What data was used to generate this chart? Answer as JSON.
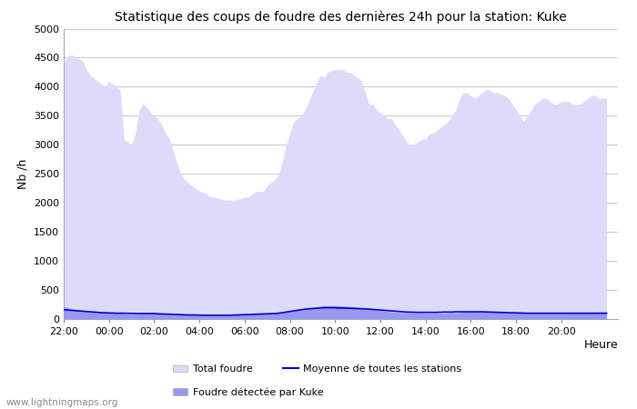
{
  "title": "Statistique des coups de foudre des dernières 24h pour la station: Kuke",
  "xlabel": "Heure",
  "ylabel": "Nb /h",
  "xlim": [
    0,
    24.5
  ],
  "ylim": [
    0,
    5000
  ],
  "yticks": [
    0,
    500,
    1000,
    1500,
    2000,
    2500,
    3000,
    3500,
    4000,
    4500,
    5000
  ],
  "xtick_labels": [
    "22:00",
    "00:00",
    "02:00",
    "04:00",
    "06:00",
    "08:00",
    "10:00",
    "12:00",
    "14:00",
    "16:00",
    "18:00",
    "20:00"
  ],
  "xtick_positions": [
    0,
    2,
    4,
    6,
    8,
    10,
    12,
    14,
    16,
    18,
    20,
    22
  ],
  "background_color": "#ffffff",
  "plot_bg_color": "#ffffff",
  "grid_color": "#cccccc",
  "fill_total_color": "#dcdcfa",
  "fill_kuke_color": "#9898f0",
  "line_mean_color": "#0000cc",
  "watermark": "www.lightningmaps.org",
  "legend_items": [
    "Total foudre",
    "Moyenne de toutes les stations",
    "Foudre détectée par Kuke"
  ],
  "x": [
    0.0,
    0.167,
    0.333,
    0.5,
    0.667,
    0.833,
    1.0,
    1.167,
    1.333,
    1.5,
    1.667,
    1.833,
    2.0,
    2.167,
    2.333,
    2.5,
    2.667,
    2.833,
    3.0,
    3.167,
    3.333,
    3.5,
    3.667,
    3.833,
    4.0,
    4.167,
    4.333,
    4.5,
    4.667,
    4.833,
    5.0,
    5.167,
    5.333,
    5.5,
    5.667,
    5.833,
    6.0,
    6.167,
    6.333,
    6.5,
    6.667,
    6.833,
    7.0,
    7.167,
    7.333,
    7.5,
    7.667,
    7.833,
    8.0,
    8.167,
    8.333,
    8.5,
    8.667,
    8.833,
    9.0,
    9.167,
    9.333,
    9.5,
    9.667,
    9.833,
    10.0,
    10.167,
    10.333,
    10.5,
    10.667,
    10.833,
    11.0,
    11.167,
    11.333,
    11.5,
    11.667,
    11.833,
    12.0,
    12.167,
    12.333,
    12.5,
    12.667,
    12.833,
    13.0,
    13.167,
    13.333,
    13.5,
    13.667,
    13.833,
    14.0,
    14.167,
    14.333,
    14.5,
    14.667,
    14.833,
    15.0,
    15.167,
    15.333,
    15.5,
    15.667,
    15.833,
    16.0,
    16.167,
    16.333,
    16.5,
    16.667,
    16.833,
    17.0,
    17.167,
    17.333,
    17.5,
    17.667,
    17.833,
    18.0,
    18.167,
    18.333,
    18.5,
    18.667,
    18.833,
    19.0,
    19.167,
    19.333,
    19.5,
    19.667,
    19.833,
    20.0,
    20.167,
    20.333,
    20.5,
    20.667,
    20.833,
    21.0,
    21.167,
    21.333,
    21.5,
    21.667,
    21.833,
    22.0,
    22.167,
    22.333,
    22.5,
    22.667,
    22.833,
    23.0,
    23.167,
    23.333,
    23.5,
    23.667,
    23.833,
    24.0
  ],
  "total_foudre": [
    4400,
    4530,
    4550,
    4520,
    4480,
    4450,
    4300,
    4200,
    4150,
    4100,
    4050,
    4000,
    4100,
    4050,
    4000,
    3950,
    3100,
    3050,
    3000,
    3200,
    3600,
    3700,
    3650,
    3550,
    3500,
    3450,
    3350,
    3200,
    3100,
    2900,
    2700,
    2500,
    2400,
    2350,
    2300,
    2250,
    2200,
    2180,
    2150,
    2100,
    2100,
    2080,
    2060,
    2050,
    2050,
    2050,
    2060,
    2070,
    2100,
    2100,
    2150,
    2200,
    2200,
    2200,
    2300,
    2350,
    2400,
    2500,
    2700,
    3000,
    3200,
    3400,
    3450,
    3500,
    3600,
    3750,
    3900,
    4050,
    4200,
    4160,
    4250,
    4280,
    4300,
    4300,
    4300,
    4250,
    4250,
    4200,
    4150,
    4100,
    3900,
    3700,
    3700,
    3600,
    3550,
    3500,
    3450,
    3450,
    3350,
    3250,
    3150,
    3050,
    3000,
    3020,
    3050,
    3100,
    3100,
    3200,
    3200,
    3250,
    3300,
    3350,
    3400,
    3500,
    3600,
    3800,
    3900,
    3900,
    3850,
    3800,
    3850,
    3900,
    3950,
    3950,
    3900,
    3900,
    3870,
    3850,
    3800,
    3700,
    3600,
    3500,
    3400,
    3500,
    3600,
    3700,
    3750,
    3800,
    3800,
    3750,
    3700,
    3700,
    3750,
    3750,
    3750,
    3700,
    3700,
    3700,
    3750,
    3800,
    3850,
    3850,
    3800,
    3800,
    3800
  ],
  "kuke_foudre": [
    220,
    200,
    180,
    170,
    160,
    150,
    140,
    130,
    130,
    120,
    120,
    110,
    110,
    110,
    100,
    100,
    90,
    85,
    80,
    85,
    90,
    100,
    100,
    100,
    100,
    100,
    95,
    90,
    85,
    80,
    75,
    70,
    70,
    70,
    70,
    65,
    65,
    65,
    65,
    65,
    65,
    65,
    65,
    65,
    65,
    70,
    70,
    70,
    75,
    80,
    80,
    85,
    85,
    90,
    90,
    95,
    100,
    100,
    110,
    120,
    130,
    140,
    160,
    170,
    180,
    190,
    200,
    210,
    220,
    230,
    230,
    230,
    230,
    230,
    225,
    220,
    215,
    210,
    200,
    195,
    185,
    175,
    165,
    155,
    145,
    140,
    130,
    125,
    120,
    115,
    110,
    110,
    105,
    105,
    105,
    105,
    100,
    100,
    100,
    100,
    100,
    100,
    100,
    110,
    110,
    115,
    115,
    120,
    120,
    120,
    125,
    125,
    125,
    125,
    120,
    120,
    115,
    115,
    110,
    110,
    105,
    105,
    100,
    100,
    100,
    100,
    100,
    100,
    100,
    100,
    100,
    100,
    100,
    100,
    100,
    105,
    105,
    110,
    110,
    115,
    115,
    120,
    120,
    120,
    125
  ],
  "mean_line": [
    160,
    155,
    150,
    145,
    140,
    135,
    130,
    125,
    120,
    115,
    110,
    108,
    105,
    103,
    100,
    100,
    100,
    98,
    95,
    95,
    95,
    95,
    95,
    95,
    95,
    90,
    88,
    85,
    82,
    80,
    78,
    75,
    73,
    70,
    70,
    68,
    65,
    65,
    65,
    65,
    65,
    65,
    65,
    65,
    65,
    68,
    70,
    72,
    75,
    78,
    80,
    82,
    85,
    88,
    90,
    92,
    95,
    100,
    110,
    120,
    130,
    140,
    150,
    160,
    170,
    175,
    180,
    185,
    190,
    195,
    195,
    195,
    195,
    190,
    190,
    188,
    185,
    182,
    180,
    178,
    175,
    170,
    165,
    160,
    155,
    150,
    145,
    140,
    135,
    130,
    125,
    120,
    118,
    115,
    115,
    115,
    115,
    115,
    115,
    115,
    118,
    120,
    120,
    120,
    125,
    125,
    125,
    125,
    125,
    125,
    125,
    125,
    122,
    120,
    118,
    115,
    115,
    112,
    110,
    108,
    105,
    105,
    102,
    100,
    100,
    100,
    100,
    100,
    100,
    100,
    100,
    100,
    100,
    100,
    100,
    100,
    100,
    100,
    100,
    100,
    100,
    100,
    100,
    100,
    100
  ]
}
